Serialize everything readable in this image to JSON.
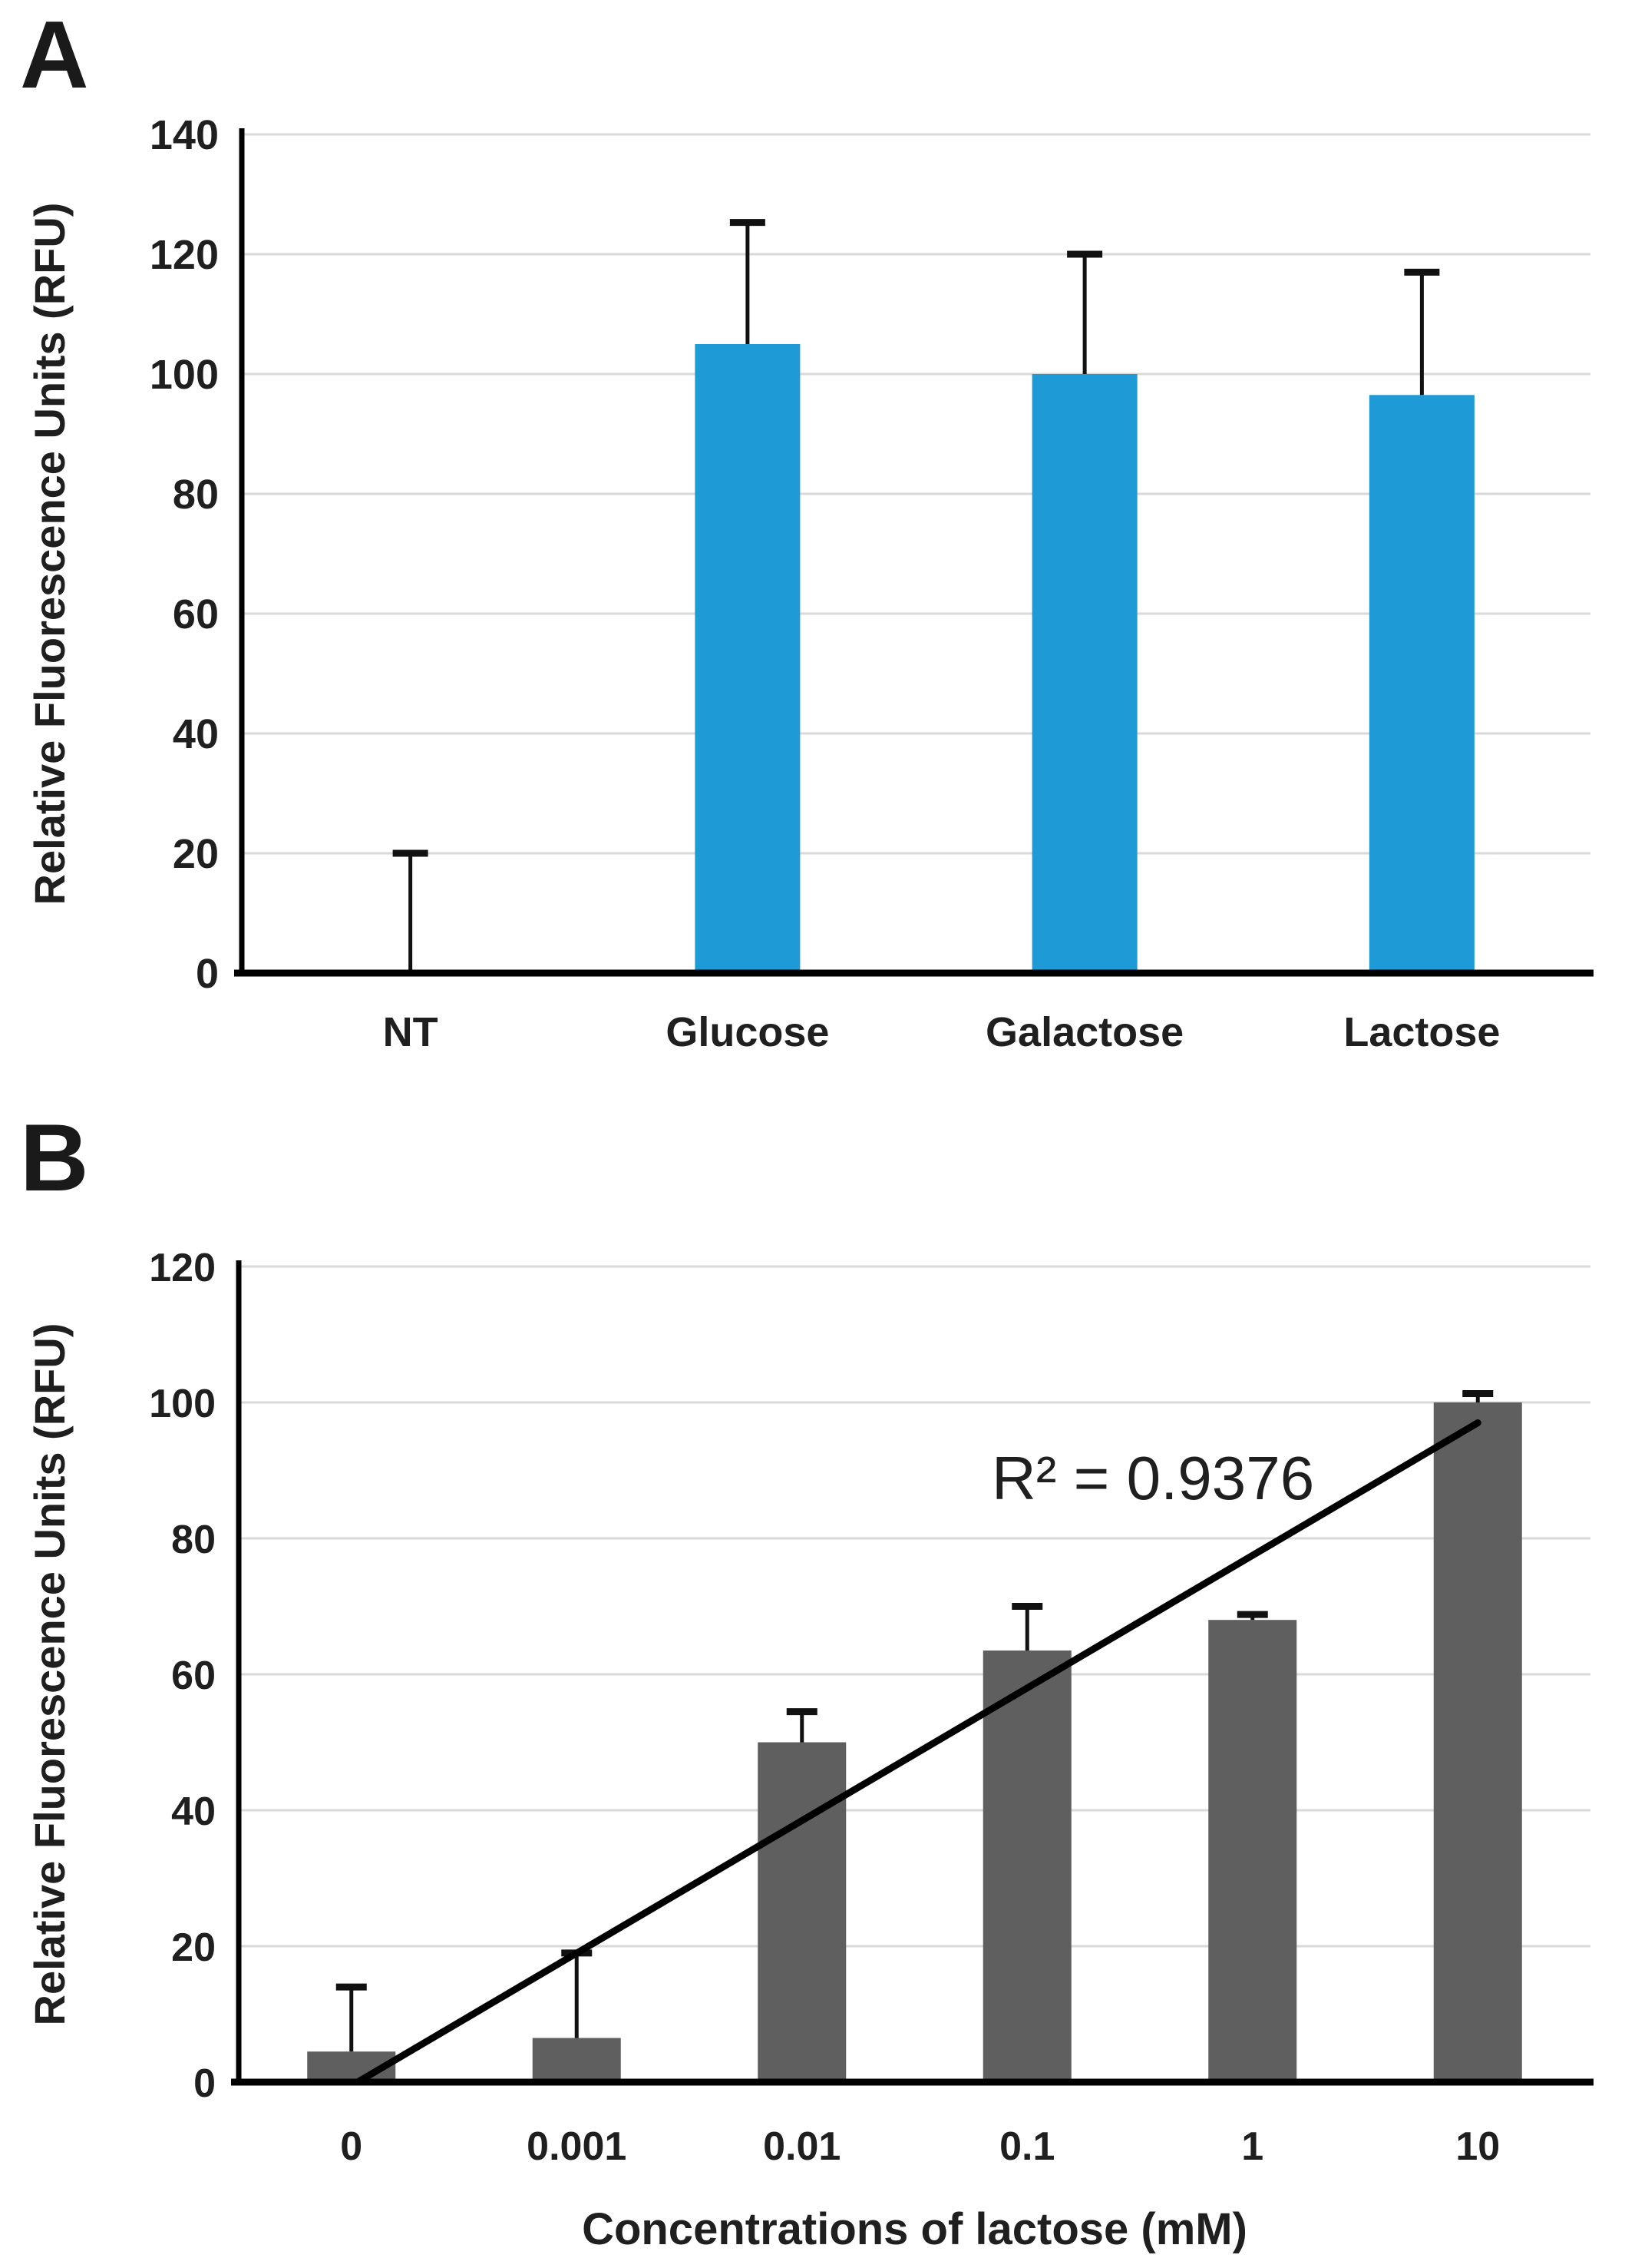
{
  "figure": {
    "panels": [
      {
        "letter": "A"
      },
      {
        "letter": "B"
      }
    ]
  },
  "colors": {
    "panel_a_bar": "#1E9BD7",
    "panel_b_bar": "#5F5F5F",
    "gridline": "#D9D9D9",
    "axis": "#000000",
    "error_bar": "#111111",
    "trendline": "#000000",
    "text": "#1f1f1f",
    "background": "#ffffff"
  },
  "chart_data": [
    {
      "type": "bar",
      "panel": "A",
      "title": "",
      "categories": [
        "NT",
        "Glucose",
        "Galactose",
        "Lactose"
      ],
      "values": [
        0,
        105,
        100,
        96.5
      ],
      "error_up": [
        20,
        20.3,
        20,
        20.5
      ],
      "xlabel": "",
      "ylabel": "Relative Fluorescence Units (RFU)",
      "ylim": [
        0,
        140
      ],
      "yticks": [
        140,
        120,
        100,
        80,
        60,
        40,
        20,
        0
      ],
      "grid": true,
      "legend": "none"
    },
    {
      "type": "bar",
      "panel": "B",
      "title": "",
      "categories": [
        "0",
        "0.001",
        "0.01",
        "0.1",
        "1",
        "10"
      ],
      "values": [
        4.5,
        6.5,
        50,
        63.5,
        68,
        100
      ],
      "error_up": [
        9.5,
        12.5,
        4.5,
        6.5,
        0.8,
        1.3
      ],
      "xlabel": "Concentrations of lactose (mM)",
      "ylabel": "Relative Fluorescence Units (RFU)",
      "ylim": [
        0,
        120
      ],
      "yticks": [
        120,
        100,
        80,
        60,
        40,
        20,
        0
      ],
      "grid": true,
      "legend": "none",
      "trendline": {
        "r_squared_label": "R² = 0.9376",
        "start_category_index": 0,
        "start_value": 0,
        "end_category_index": 5,
        "end_value": 97
      }
    }
  ]
}
